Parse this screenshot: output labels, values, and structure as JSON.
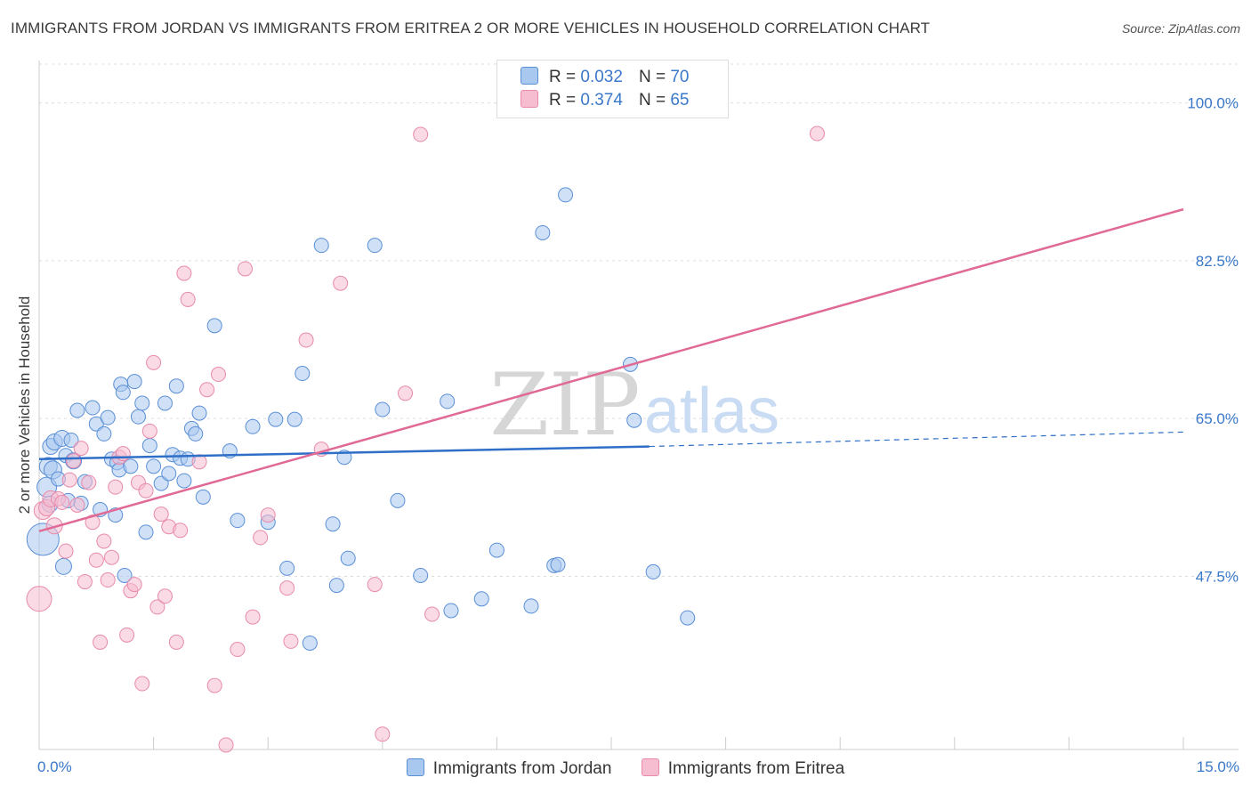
{
  "title": "IMMIGRANTS FROM JORDAN VS IMMIGRANTS FROM ERITREA 2 OR MORE VEHICLES IN HOUSEHOLD CORRELATION CHART",
  "source": "Source: ZipAtlas.com",
  "watermark": {
    "zip": "ZIP",
    "atlas": "atlas"
  },
  "legend": {
    "r_label": "R =",
    "n_label": "N =",
    "series": [
      {
        "r": "0.032",
        "n": "70"
      },
      {
        "r": "0.374",
        "n": "65"
      }
    ]
  },
  "colors": {
    "jordan_fill": "#a9c8f0",
    "jordan_stroke": "#5a8fd6",
    "jordan_line": "#2f6fc8",
    "eritrea_fill": "#f6bcd0",
    "eritrea_stroke": "#e88aab",
    "eritrea_line": "#e06a95",
    "tick_text": "#3a78c9",
    "grid": "#dddddd"
  },
  "chart_data": {
    "type": "scatter",
    "title": "IMMIGRANTS FROM JORDAN VS IMMIGRANTS FROM ERITREA 2 OR MORE VEHICLES IN HOUSEHOLD CORRELATION CHART",
    "xlabel": "",
    "ylabel": "2 or more Vehicles in Household",
    "xlim": [
      0,
      15
    ],
    "ylim": [
      28.3,
      104.3
    ],
    "x_tick_labels": [
      "0.0%",
      "15.0%"
    ],
    "y_ticks": [
      47.5,
      65.0,
      82.5,
      100.0
    ],
    "y_tick_labels": [
      "47.5%",
      "65.0%",
      "82.5%",
      "100.0%"
    ],
    "grid": true,
    "legend_position": "top-center",
    "series": [
      {
        "name": "Immigrants from Jordan",
        "r": 0.032,
        "n": 70,
        "trend": {
          "x0": 0,
          "y0": 60.5,
          "x1": 8.0,
          "y1": 61.9,
          "dash_to_x": 15,
          "dash_to_y": 63.5
        },
        "points": [
          [
            0.05,
            51.6,
            18
          ],
          [
            0.1,
            57.4,
            11
          ],
          [
            0.12,
            59.7,
            10
          ],
          [
            0.14,
            55.5,
            9
          ],
          [
            0.15,
            61.9,
            9
          ],
          [
            0.18,
            59.3,
            10
          ],
          [
            0.2,
            62.4,
            9
          ],
          [
            0.25,
            58.3,
            8
          ],
          [
            0.3,
            62.8,
            9
          ],
          [
            0.32,
            48.6,
            9
          ],
          [
            0.35,
            60.9,
            8
          ],
          [
            0.38,
            55.9,
            8
          ],
          [
            0.42,
            62.6,
            8
          ],
          [
            0.45,
            60.3,
            9
          ],
          [
            0.5,
            65.9,
            8
          ],
          [
            0.55,
            55.6,
            8
          ],
          [
            0.6,
            58.0,
            8
          ],
          [
            0.7,
            66.2,
            8
          ],
          [
            0.75,
            64.4,
            8
          ],
          [
            0.8,
            54.9,
            8
          ],
          [
            0.85,
            63.3,
            8
          ],
          [
            0.9,
            65.1,
            8
          ],
          [
            0.95,
            60.5,
            8
          ],
          [
            1.0,
            54.3,
            8
          ],
          [
            1.02,
            60.1,
            8
          ],
          [
            1.05,
            59.3,
            8
          ],
          [
            1.07,
            68.8,
            8
          ],
          [
            1.1,
            67.9,
            8
          ],
          [
            1.12,
            47.6,
            8
          ],
          [
            1.2,
            59.7,
            8
          ],
          [
            1.25,
            69.1,
            8
          ],
          [
            1.3,
            65.2,
            8
          ],
          [
            1.35,
            66.7,
            8
          ],
          [
            1.4,
            52.4,
            8
          ],
          [
            1.45,
            62.0,
            8
          ],
          [
            1.5,
            59.7,
            8
          ],
          [
            1.6,
            57.8,
            8
          ],
          [
            1.65,
            66.7,
            8
          ],
          [
            1.7,
            58.9,
            8
          ],
          [
            1.75,
            61.0,
            8
          ],
          [
            1.8,
            68.6,
            8
          ],
          [
            1.85,
            60.6,
            8
          ],
          [
            1.9,
            58.1,
            8
          ],
          [
            1.95,
            60.5,
            8
          ],
          [
            2.0,
            63.9,
            8
          ],
          [
            2.05,
            63.3,
            8
          ],
          [
            2.1,
            65.6,
            8
          ],
          [
            2.15,
            56.3,
            8
          ],
          [
            2.3,
            75.3,
            8
          ],
          [
            2.5,
            61.4,
            8
          ],
          [
            2.6,
            53.7,
            8
          ],
          [
            2.8,
            64.1,
            8
          ],
          [
            3.0,
            53.5,
            8
          ],
          [
            3.1,
            64.9,
            8
          ],
          [
            3.25,
            48.4,
            8
          ],
          [
            3.35,
            64.9,
            8
          ],
          [
            3.45,
            70.0,
            8
          ],
          [
            3.55,
            40.1,
            8
          ],
          [
            3.7,
            84.2,
            8
          ],
          [
            3.85,
            53.3,
            8
          ],
          [
            3.9,
            46.5,
            8
          ],
          [
            4.0,
            60.7,
            8
          ],
          [
            4.05,
            49.5,
            8
          ],
          [
            4.4,
            84.2,
            8
          ],
          [
            4.5,
            66.0,
            8
          ],
          [
            4.7,
            55.9,
            8
          ],
          [
            5.0,
            47.6,
            8
          ],
          [
            5.35,
            66.9,
            8
          ],
          [
            5.4,
            43.7,
            8
          ],
          [
            5.8,
            45.0,
            8
          ],
          [
            6.0,
            50.4,
            8
          ],
          [
            6.45,
            44.2,
            8
          ],
          [
            6.6,
            85.6,
            8
          ],
          [
            6.75,
            48.7,
            8
          ],
          [
            6.8,
            48.8,
            8
          ],
          [
            6.9,
            89.8,
            8
          ],
          [
            7.75,
            71.0,
            8
          ],
          [
            7.8,
            64.8,
            8
          ],
          [
            8.05,
            48.0,
            8
          ],
          [
            8.5,
            42.9,
            8
          ]
        ]
      },
      {
        "name": "Immigrants from Eritrea",
        "r": 0.374,
        "n": 65,
        "trend": {
          "x0": 0,
          "y0": 52.5,
          "x1": 15,
          "y1": 88.2
        },
        "points": [
          [
            0.0,
            45.0,
            14
          ],
          [
            0.05,
            54.8,
            10
          ],
          [
            0.1,
            55.1,
            9
          ],
          [
            0.15,
            56.1,
            9
          ],
          [
            0.2,
            53.1,
            9
          ],
          [
            0.25,
            56.1,
            8
          ],
          [
            0.3,
            55.7,
            8
          ],
          [
            0.35,
            50.3,
            8
          ],
          [
            0.4,
            58.2,
            8
          ],
          [
            0.45,
            60.3,
            8
          ],
          [
            0.5,
            55.4,
            8
          ],
          [
            0.55,
            61.7,
            8
          ],
          [
            0.6,
            46.9,
            8
          ],
          [
            0.65,
            57.9,
            8
          ],
          [
            0.7,
            53.5,
            8
          ],
          [
            0.75,
            49.3,
            8
          ],
          [
            0.8,
            40.2,
            8
          ],
          [
            0.85,
            51.4,
            8
          ],
          [
            0.9,
            47.1,
            8
          ],
          [
            0.95,
            49.6,
            8
          ],
          [
            1.0,
            57.4,
            8
          ],
          [
            1.05,
            60.7,
            8
          ],
          [
            1.1,
            61.1,
            8
          ],
          [
            1.15,
            41.0,
            8
          ],
          [
            1.2,
            45.9,
            8
          ],
          [
            1.25,
            46.6,
            8
          ],
          [
            1.3,
            57.9,
            8
          ],
          [
            1.35,
            35.6,
            8
          ],
          [
            1.4,
            57.0,
            8
          ],
          [
            1.45,
            63.6,
            8
          ],
          [
            1.5,
            71.2,
            8
          ],
          [
            1.55,
            44.1,
            8
          ],
          [
            1.6,
            54.4,
            8
          ],
          [
            1.65,
            45.3,
            8
          ],
          [
            1.7,
            53.0,
            8
          ],
          [
            1.8,
            40.2,
            8
          ],
          [
            1.85,
            52.6,
            8
          ],
          [
            1.9,
            81.1,
            8
          ],
          [
            1.95,
            78.2,
            8
          ],
          [
            2.1,
            60.2,
            8
          ],
          [
            2.2,
            68.2,
            8
          ],
          [
            2.3,
            35.4,
            8
          ],
          [
            2.35,
            69.9,
            8
          ],
          [
            2.45,
            28.8,
            8
          ],
          [
            2.6,
            39.4,
            8
          ],
          [
            2.7,
            81.6,
            8
          ],
          [
            2.8,
            43.0,
            8
          ],
          [
            2.9,
            51.8,
            8
          ],
          [
            3.0,
            54.3,
            8
          ],
          [
            3.25,
            46.2,
            8
          ],
          [
            3.3,
            40.3,
            8
          ],
          [
            3.5,
            73.7,
            8
          ],
          [
            3.7,
            61.6,
            8
          ],
          [
            3.95,
            80.0,
            8
          ],
          [
            4.4,
            46.6,
            8
          ],
          [
            4.5,
            30.0,
            8
          ],
          [
            4.8,
            67.8,
            8
          ],
          [
            5.0,
            96.5,
            8
          ],
          [
            5.15,
            43.3,
            8
          ],
          [
            10.2,
            96.6,
            8
          ]
        ]
      }
    ]
  },
  "bottom_legend": [
    "Immigrants from Jordan",
    "Immigrants from Eritrea"
  ]
}
